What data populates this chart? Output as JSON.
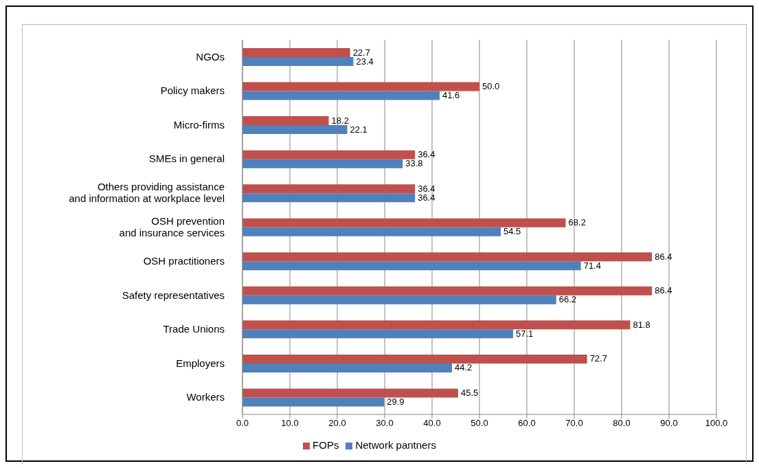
{
  "chart_data": {
    "type": "bar",
    "orientation": "horizontal",
    "categories": [
      "NGOs",
      "Policy makers",
      "Micro-firms",
      "SMEs in general",
      "Others providing assistance\nand information at workplace level",
      "OSH prevention\nand insurance services",
      "OSH practitioners",
      "Safety representatives",
      "Trade Unions",
      "Employers",
      "Workers"
    ],
    "series": [
      {
        "name": "FOPs",
        "color": "#c0504d",
        "values": [
          22.7,
          50.0,
          18.2,
          36.4,
          36.4,
          68.2,
          86.4,
          86.4,
          81.8,
          72.7,
          45.5
        ],
        "value_labels": [
          "22.7",
          "50.0",
          "18.2",
          "36.4",
          "36.4",
          "68.2",
          "86.4",
          "86.4",
          "81.8",
          "72.7",
          "45.5"
        ]
      },
      {
        "name": "Network pantners",
        "color": "#4f81bd",
        "values": [
          23.4,
          41.6,
          22.1,
          33.8,
          36.4,
          54.5,
          71.4,
          66.2,
          57.1,
          44.2,
          29.9
        ],
        "value_labels": [
          "23.4",
          "41.6",
          "22.1",
          "33.8",
          "36.4",
          "54.5",
          "71.4",
          "66.2",
          "57.1",
          "44.2",
          "29.9"
        ]
      }
    ],
    "xlim": [
      0,
      100
    ],
    "xticks": [
      {
        "value": 0,
        "label": "0.0"
      },
      {
        "value": 10,
        "label": "10.0"
      },
      {
        "value": 20,
        "label": "20.0"
      },
      {
        "value": 30,
        "label": "30.0"
      },
      {
        "value": 40,
        "label": "40.0"
      },
      {
        "value": 50,
        "label": "50.0"
      },
      {
        "value": 60,
        "label": "60.0"
      },
      {
        "value": 70,
        "label": "70.0"
      },
      {
        "value": 80,
        "label": "80.0"
      },
      {
        "value": 90,
        "label": "90.0"
      },
      {
        "value": 100,
        "label": "100.0"
      }
    ],
    "grid": "x",
    "legend": "bottom"
  }
}
